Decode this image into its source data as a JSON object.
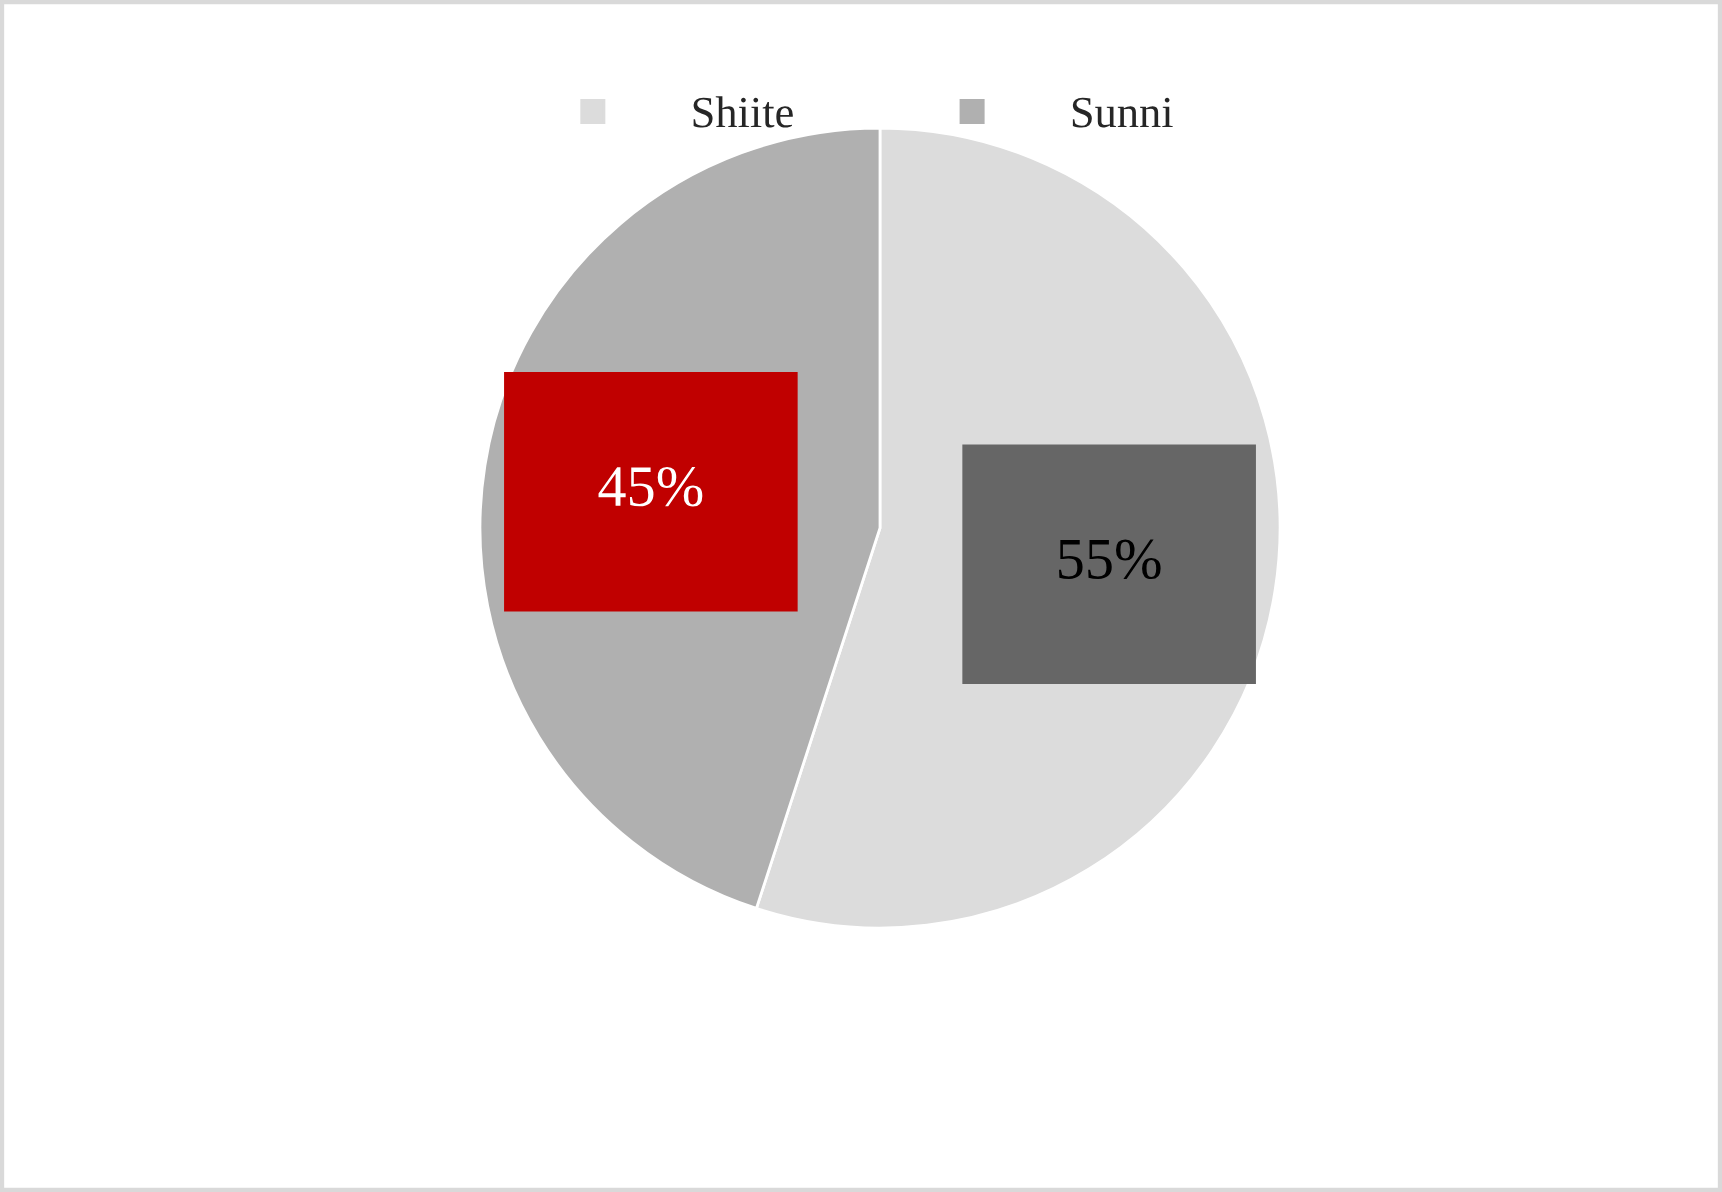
{
  "chart_data": {
    "type": "pie",
    "categories": [
      "Shiite",
      "Sunni"
    ],
    "values": [
      55,
      45
    ],
    "colors": [
      "#dcdcdc",
      "#b0b0b0"
    ],
    "value_labels": [
      "55%",
      "45%"
    ],
    "legend": "top"
  }
}
